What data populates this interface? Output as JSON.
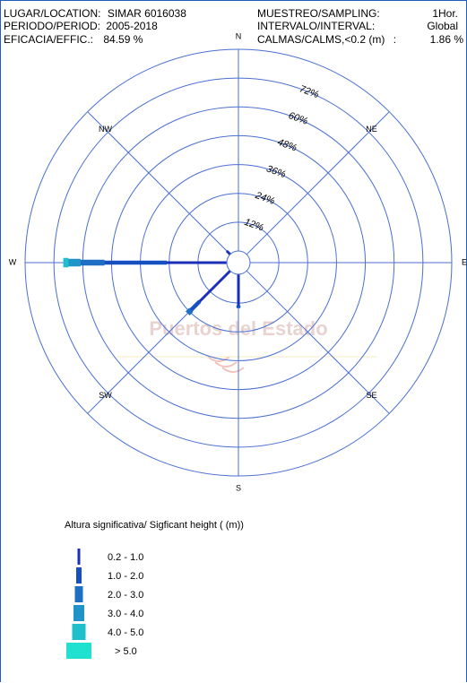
{
  "header": {
    "location_label": "LUGAR/LOCATION:",
    "location_value": "SIMAR 6016038",
    "period_label": "PERIODO/PERIOD:",
    "period_value": "2005-2018",
    "efficacy_label": "EFICACIA/EFFIC.:",
    "efficacy_value": "84.59 %",
    "sampling_label": "MUESTREO/SAMPLING:",
    "sampling_value": "1Hor.",
    "interval_label": "INTERVALO/INTERVAL:",
    "interval_value": "Global",
    "calms_label": "CALMAS/CALMS,<0.2 (m)",
    "calms_sep": ":",
    "calms_value": "1.86 %"
  },
  "watermark": "Puertos del Estado",
  "chart_data": {
    "type": "rose",
    "directions": [
      "N",
      "NE",
      "E",
      "SE",
      "S",
      "SW",
      "W",
      "NW"
    ],
    "ring_labels": [
      "12%",
      "24%",
      "36%",
      "48%",
      "60%",
      "72%"
    ],
    "rmax_percent": 84,
    "bars": [
      {
        "direction": "W",
        "angle_deg": 270,
        "total_percent": 68,
        "segments": [
          {
            "class": "0.2 - 1.0",
            "to_percent": 25
          },
          {
            "class": "1.0 - 2.0",
            "to_percent": 51
          },
          {
            "class": "2.0 - 3.0",
            "to_percent": 61
          },
          {
            "class": "3.0 - 4.0",
            "to_percent": 66
          },
          {
            "class": "4.0 - 5.0",
            "to_percent": 68
          }
        ]
      },
      {
        "direction": "SW",
        "angle_deg": 225,
        "total_percent": 25,
        "segments": [
          {
            "class": "0.2 - 1.0",
            "to_percent": 18
          },
          {
            "class": "1.0 - 2.0",
            "to_percent": 23
          },
          {
            "class": "2.0 - 3.0",
            "to_percent": 25
          }
        ]
      },
      {
        "direction": "S",
        "angle_deg": 180,
        "total_percent": 14,
        "segments": [
          {
            "class": "0.2 - 1.0",
            "to_percent": 13
          },
          {
            "class": "1.0 - 2.0",
            "to_percent": 14
          }
        ]
      },
      {
        "direction": "NW",
        "angle_deg": 315,
        "total_percent": 2,
        "segments": [
          {
            "class": "0.2 - 1.0",
            "to_percent": 2
          }
        ]
      }
    ]
  },
  "legend": {
    "title": "Altura significativa/ Sigficant height   ( (m))",
    "items": [
      {
        "label": "0.2 -  1.0",
        "color": "#1a2fb8"
      },
      {
        "label": "1.0 -  2.0",
        "color": "#1650c0"
      },
      {
        "label": "2.0 -  3.0",
        "color": "#1e6fc4"
      },
      {
        "label": "3.0 -  4.0",
        "color": "#2094c8"
      },
      {
        "label": "4.0 -  5.0",
        "color": "#1fbfcc"
      },
      {
        "label": ">  5.0",
        "color": "#20e0d0"
      }
    ]
  }
}
